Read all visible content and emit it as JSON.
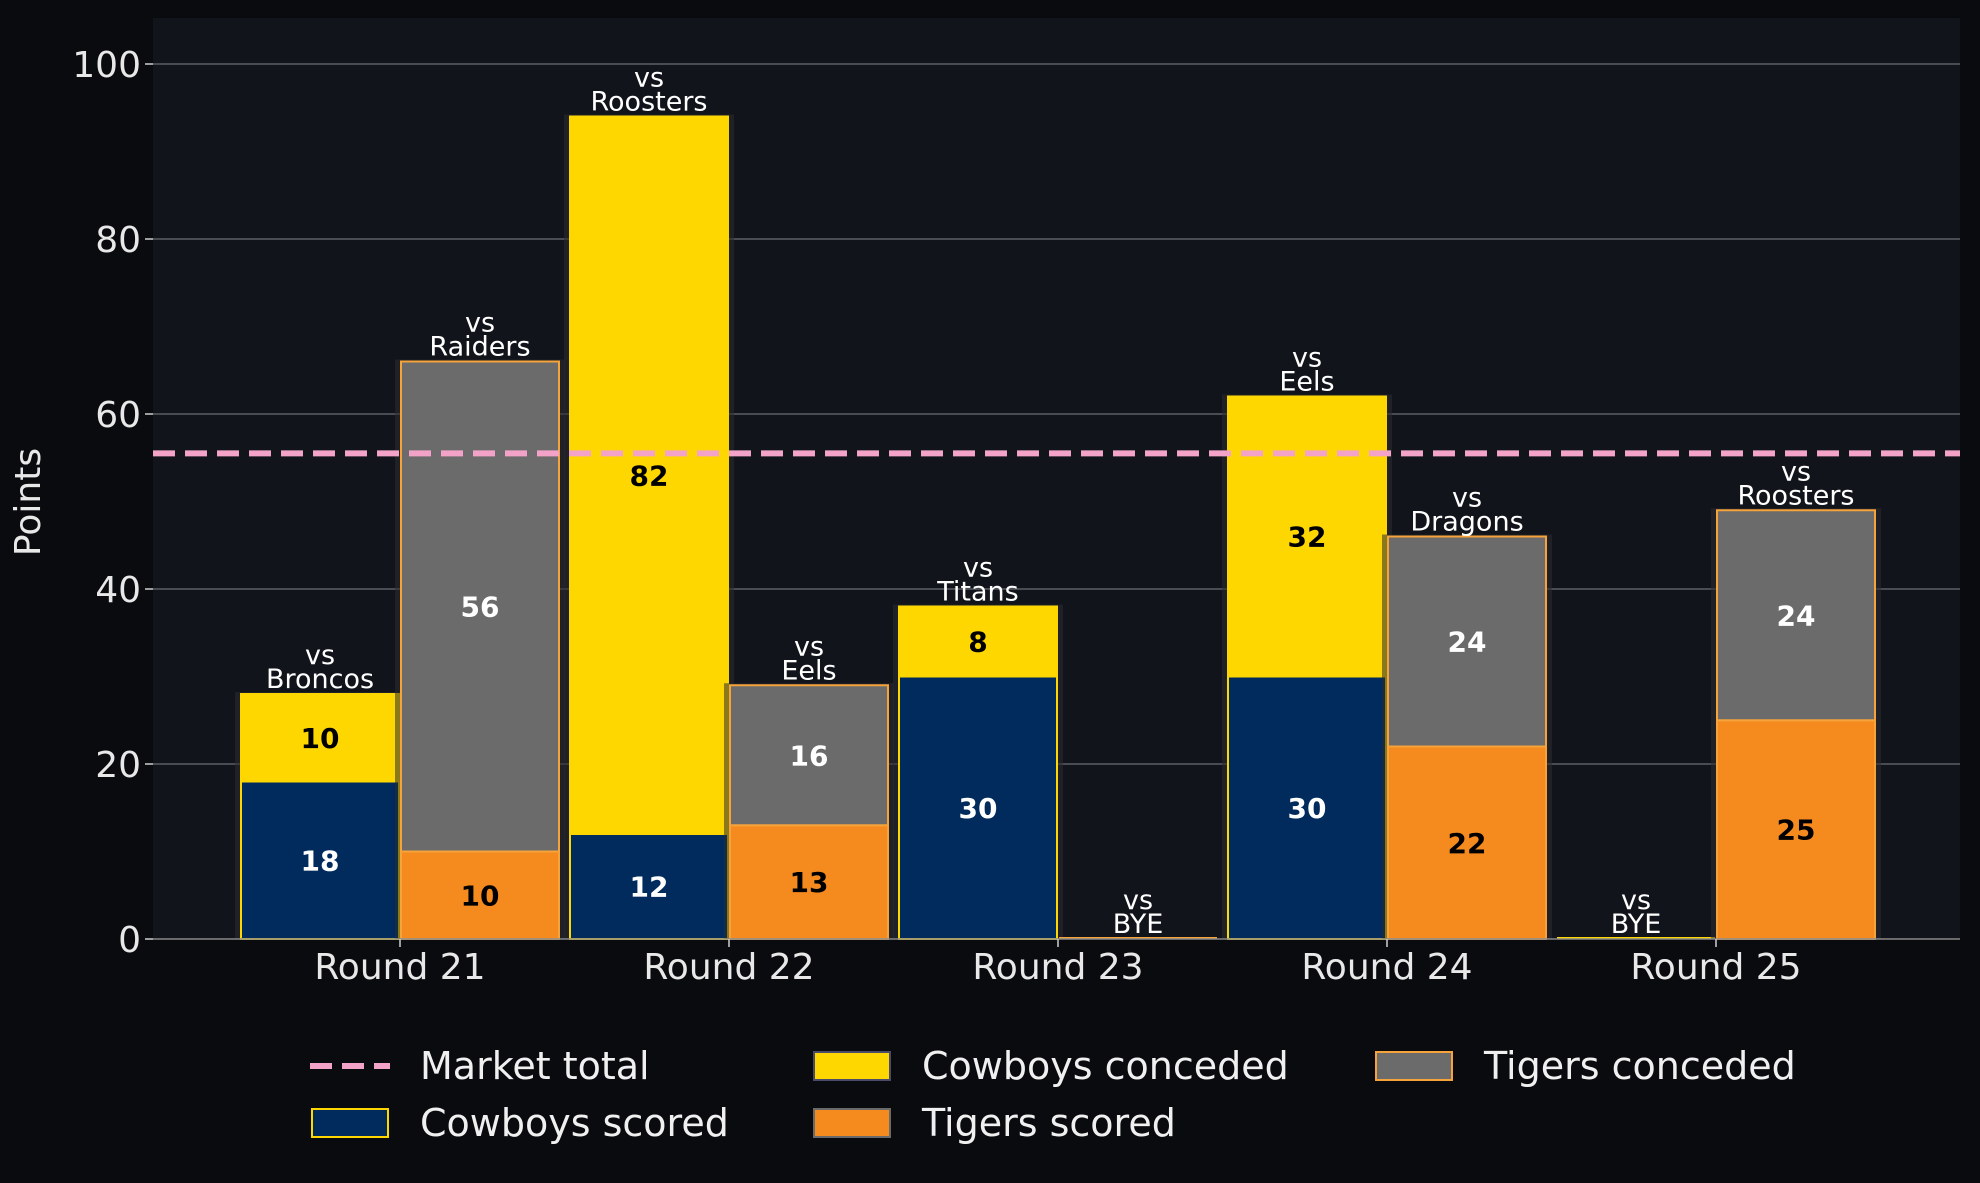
{
  "chart_data": {
    "type": "bar",
    "ylabel": "Points",
    "ylim": [
      0,
      105
    ],
    "yticks": [
      0,
      20,
      40,
      60,
      80,
      100
    ],
    "grid": true,
    "legend_position": "bottom",
    "categories": [
      "Round 21",
      "Round 22",
      "Round 23",
      "Round 24",
      "Round 25"
    ],
    "market_total": {
      "name": "Market total",
      "value": 55.5,
      "color": "#f4a3c8"
    },
    "teams": [
      {
        "scored_name": "Cowboys scored",
        "conceded_name": "Cowboys conceded",
        "scored_color": "#002b5c",
        "conceded_color": "#ffd700",
        "edge_color": "#ffd700",
        "scored_text_color": "#ffffff",
        "conceded_text_color": "#000000",
        "scored": [
          18,
          12,
          30,
          30,
          0
        ],
        "conceded": [
          10,
          82,
          8,
          32,
          0
        ],
        "opponent_labels": [
          "vs\nBroncos",
          "vs\nRoosters",
          "vs\nTitans",
          "vs\nEels",
          "vs\nBYE"
        ]
      },
      {
        "scored_name": "Tigers scored",
        "conceded_name": "Tigers conceded",
        "scored_color": "#f58a1f",
        "conceded_color": "#6b6b6b",
        "edge_color": "#f5a33a",
        "scored_text_color": "#000000",
        "conceded_text_color": "#ffffff",
        "scored": [
          10,
          13,
          0,
          22,
          25
        ],
        "conceded": [
          56,
          16,
          0,
          24,
          24
        ],
        "opponent_labels": [
          "vs\nRaiders",
          "vs\nEels",
          "vs\nBYE",
          "vs\nDragons",
          "vs\nRoosters"
        ]
      }
    ]
  }
}
